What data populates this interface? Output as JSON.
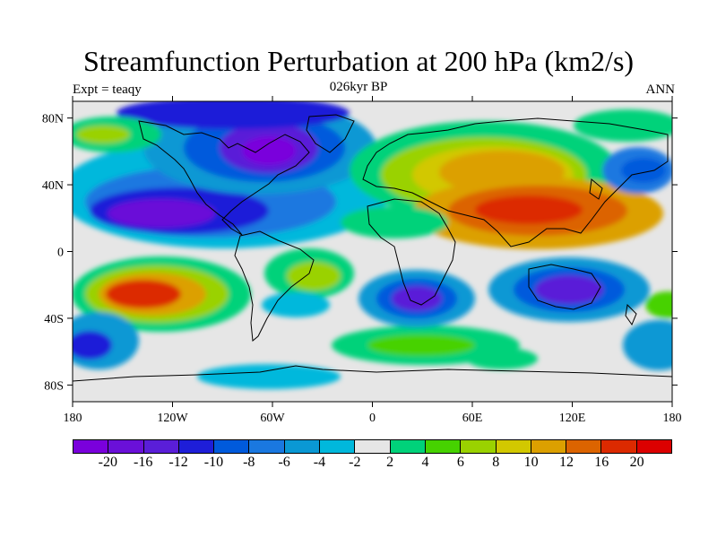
{
  "title": "Streamfunction Perturbation at 200 hPa (km2/s)",
  "subtitle_left": "Expt = teaqy",
  "subtitle_center": "026kyr BP",
  "subtitle_right": "ANN",
  "map": {
    "projection": "cylindrical-equidistant",
    "lon_range": [
      -180,
      180
    ],
    "lat_range": [
      -90,
      90
    ],
    "background_color": "#e6e6e6",
    "coastline_color": "#000000",
    "x_ticks": [
      {
        "lon": -180,
        "label": "180"
      },
      {
        "lon": -120,
        "label": "120W"
      },
      {
        "lon": -60,
        "label": "60W"
      },
      {
        "lon": 0,
        "label": "0"
      },
      {
        "lon": 60,
        "label": "60E"
      },
      {
        "lon": 120,
        "label": "120E"
      },
      {
        "lon": 180,
        "label": "180"
      }
    ],
    "y_ticks": [
      {
        "lat": 80,
        "label": "80N"
      },
      {
        "lat": 40,
        "label": "40N"
      },
      {
        "lat": 0,
        "label": "0"
      },
      {
        "lat": -40,
        "label": "40S"
      },
      {
        "lat": -80,
        "label": "80S"
      }
    ]
  },
  "colorbar": {
    "colors": [
      "#7a00dc",
      "#6a10d8",
      "#5a1ed8",
      "#1e1ed8",
      "#005adc",
      "#1a78e0",
      "#0a98d4",
      "#00b8dc",
      "#e6e6e6",
      "#00d27a",
      "#46d200",
      "#9ad200",
      "#d2c800",
      "#dca000",
      "#dc6400",
      "#dc2a00",
      "#dc0000"
    ],
    "labels": [
      "-20",
      "-16",
      "-12",
      "-10",
      "-8",
      "-6",
      "-4",
      "-2",
      "2",
      "4",
      "6",
      "8",
      "10",
      "12",
      "16",
      "20"
    ]
  }
}
